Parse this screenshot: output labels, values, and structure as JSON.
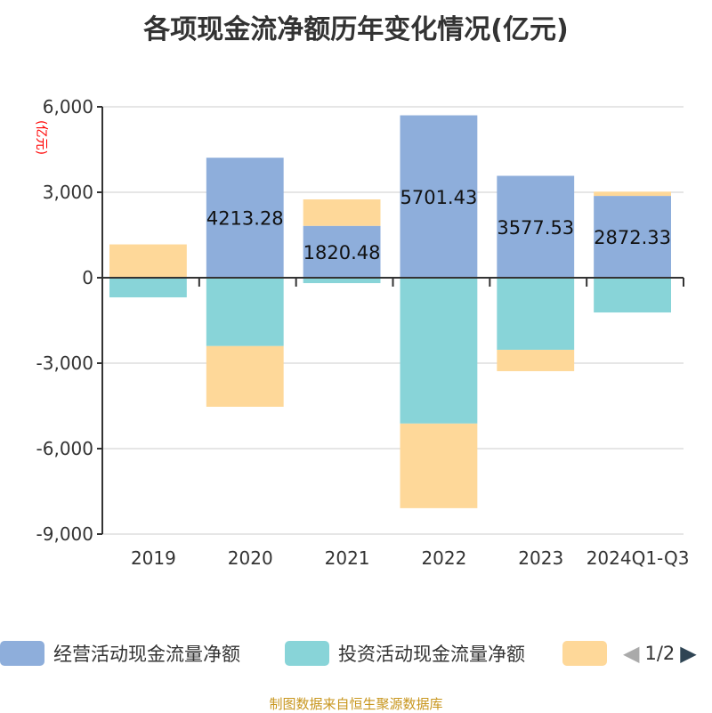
{
  "title": "各项现金流净额历年变化情况(亿元)",
  "source": "制图数据来自恒生聚源数据库",
  "legend_page": "1/2",
  "chart_data": {
    "type": "bar",
    "stacked": true,
    "title": "各项现金流净额历年变化情况(亿元)",
    "ylabel": "(亿元)",
    "ylim": [
      -9000,
      6000
    ],
    "yticks": [
      6000,
      3000,
      0,
      -3000,
      -6000,
      -9000
    ],
    "ytick_labels": [
      "6,000",
      "3,000",
      "0",
      "-3,000",
      "-6,000",
      "-9,000"
    ],
    "categories": [
      "2019",
      "2020",
      "2021",
      "2022",
      "2023",
      "2024Q1-Q3"
    ],
    "grid": true,
    "legend_placement": "bottom",
    "series": [
      {
        "name": "经营活动现金流量净额",
        "color": "#8eaedb",
        "values": [
          10,
          4213.28,
          1820.48,
          5701.43,
          3577.53,
          2872.33
        ],
        "labels": [
          "",
          "4213.28",
          "1820.48",
          "5701.43",
          "3577.53",
          "2872.33"
        ]
      },
      {
        "name": "投资活动现金流量净额",
        "color": "#88d4d8",
        "values": [
          -690,
          -2400,
          -190,
          -5120,
          -2530,
          -1220
        ]
      },
      {
        "name": "",
        "color": "#fed899",
        "values": [
          1160,
          -2130,
          930,
          -2970,
          -750,
          150
        ]
      }
    ]
  }
}
